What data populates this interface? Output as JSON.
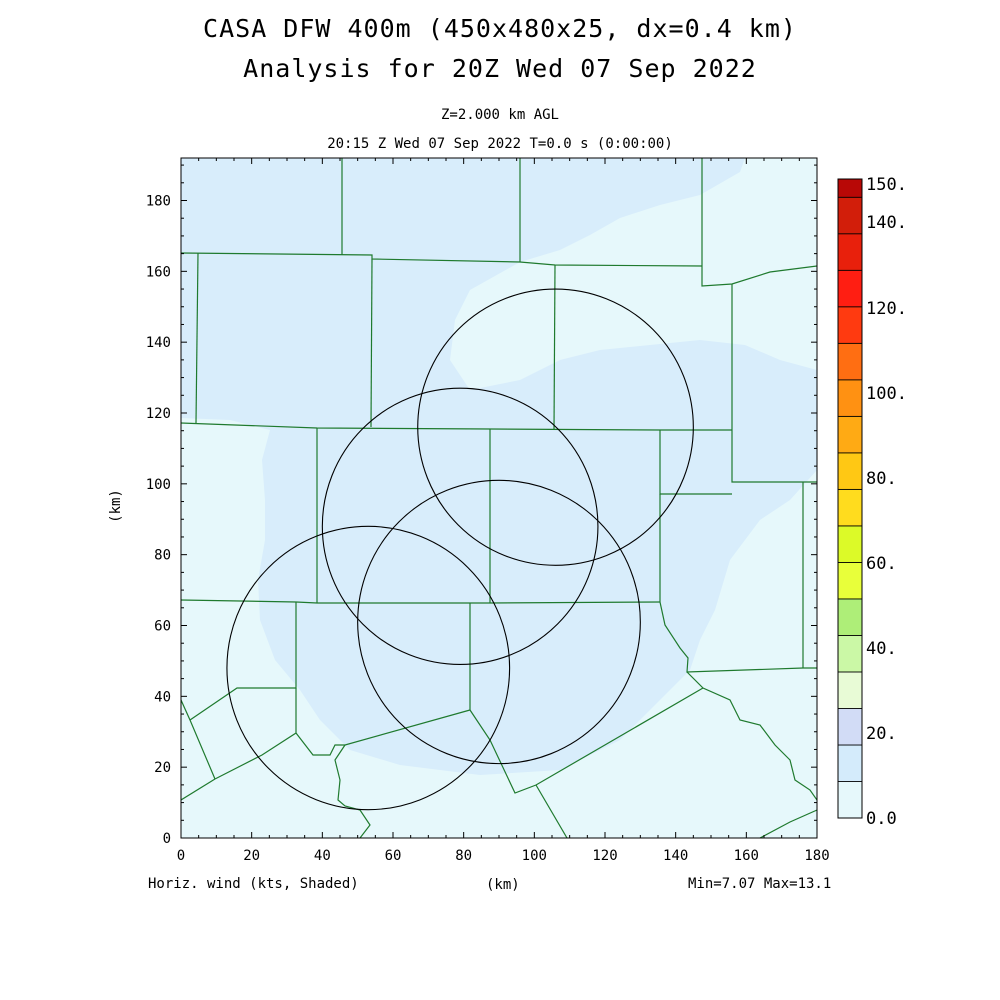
{
  "title": {
    "line1": "CASA DFW 400m (450x480x25, dx=0.4 km)",
    "line2": "Analysis for 20Z Wed 07 Sep 2022"
  },
  "subtitle": {
    "level": "Z=2.000 km AGL",
    "time": "20:15 Z Wed 07 Sep 2022   T=0.0 s (0:00:00)"
  },
  "axes": {
    "x_label": "(km)",
    "y_label": "(km)",
    "x_range": [
      0,
      180
    ],
    "y_range": [
      0,
      192
    ],
    "x_ticks": [
      "0",
      "20",
      "40",
      "60",
      "80",
      "100",
      "120",
      "140",
      "160",
      "180"
    ],
    "y_ticks": [
      "0",
      "20",
      "40",
      "60",
      "80",
      "100",
      "120",
      "140",
      "160",
      "180"
    ]
  },
  "footer": {
    "field": "Horiz. wind (kts, Shaded)",
    "stats": "Min=7.07 Max=13.1"
  },
  "colorbar": {
    "labels": [
      "0.0",
      "20.",
      "40.",
      "60.",
      "80.",
      "100.",
      "120.",
      "140.",
      "150."
    ],
    "colors": [
      "#e6f8fb",
      "#d4ebfb",
      "#d2dcf6",
      "#e8fbd6",
      "#cbf8a6",
      "#aeee78",
      "#e8ff3a",
      "#dcfa28",
      "#ffdc1e",
      "#ffc814",
      "#ffaa14",
      "#ff9112",
      "#ff6e12",
      "#ff3a10",
      "#ff1e12",
      "#e8200c",
      "#d21e0a",
      "#b80806"
    ]
  },
  "map": {
    "shading_colors": {
      "background": "#e6f8fb",
      "mid": "#d8edfb"
    },
    "boundary_color": "#1f7a2e",
    "radar_ring_color": "#000000",
    "radars": [
      {
        "x": 106,
        "y": 116,
        "r": 39
      },
      {
        "x": 79,
        "y": 88,
        "r": 39
      },
      {
        "x": 90,
        "y": 61,
        "r": 40
      },
      {
        "x": 53,
        "y": 48,
        "r": 40
      }
    ]
  }
}
